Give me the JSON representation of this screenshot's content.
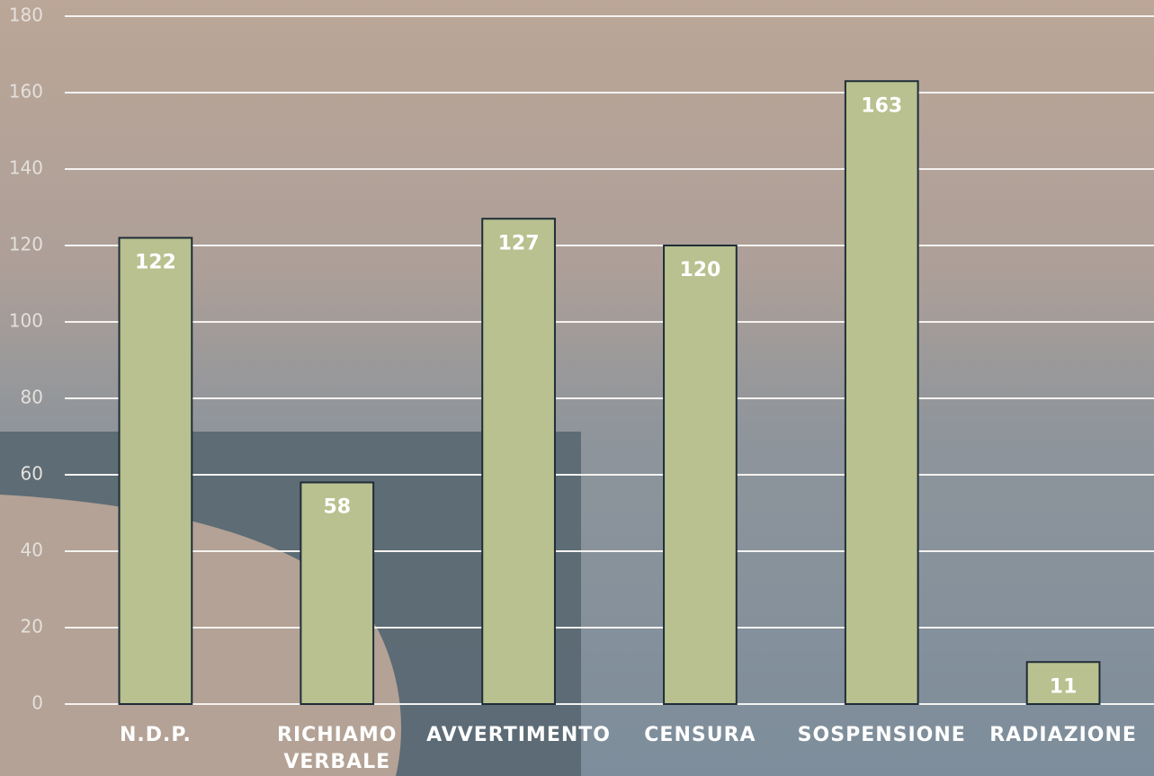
{
  "chart_data": {
    "type": "bar",
    "categories": [
      "N.D.P.",
      "RICHIAMO VERBALE",
      "AVVERTIMENTO",
      "CENSURA",
      "SOSPENSIONE",
      "RADIAZIONE"
    ],
    "values": [
      122,
      58,
      127,
      120,
      163,
      11
    ],
    "color": "#b8c18f",
    "ylim": [
      0,
      180
    ],
    "yticks": [
      0,
      20,
      40,
      60,
      80,
      100,
      120,
      140,
      160,
      180
    ],
    "grid": true
  }
}
